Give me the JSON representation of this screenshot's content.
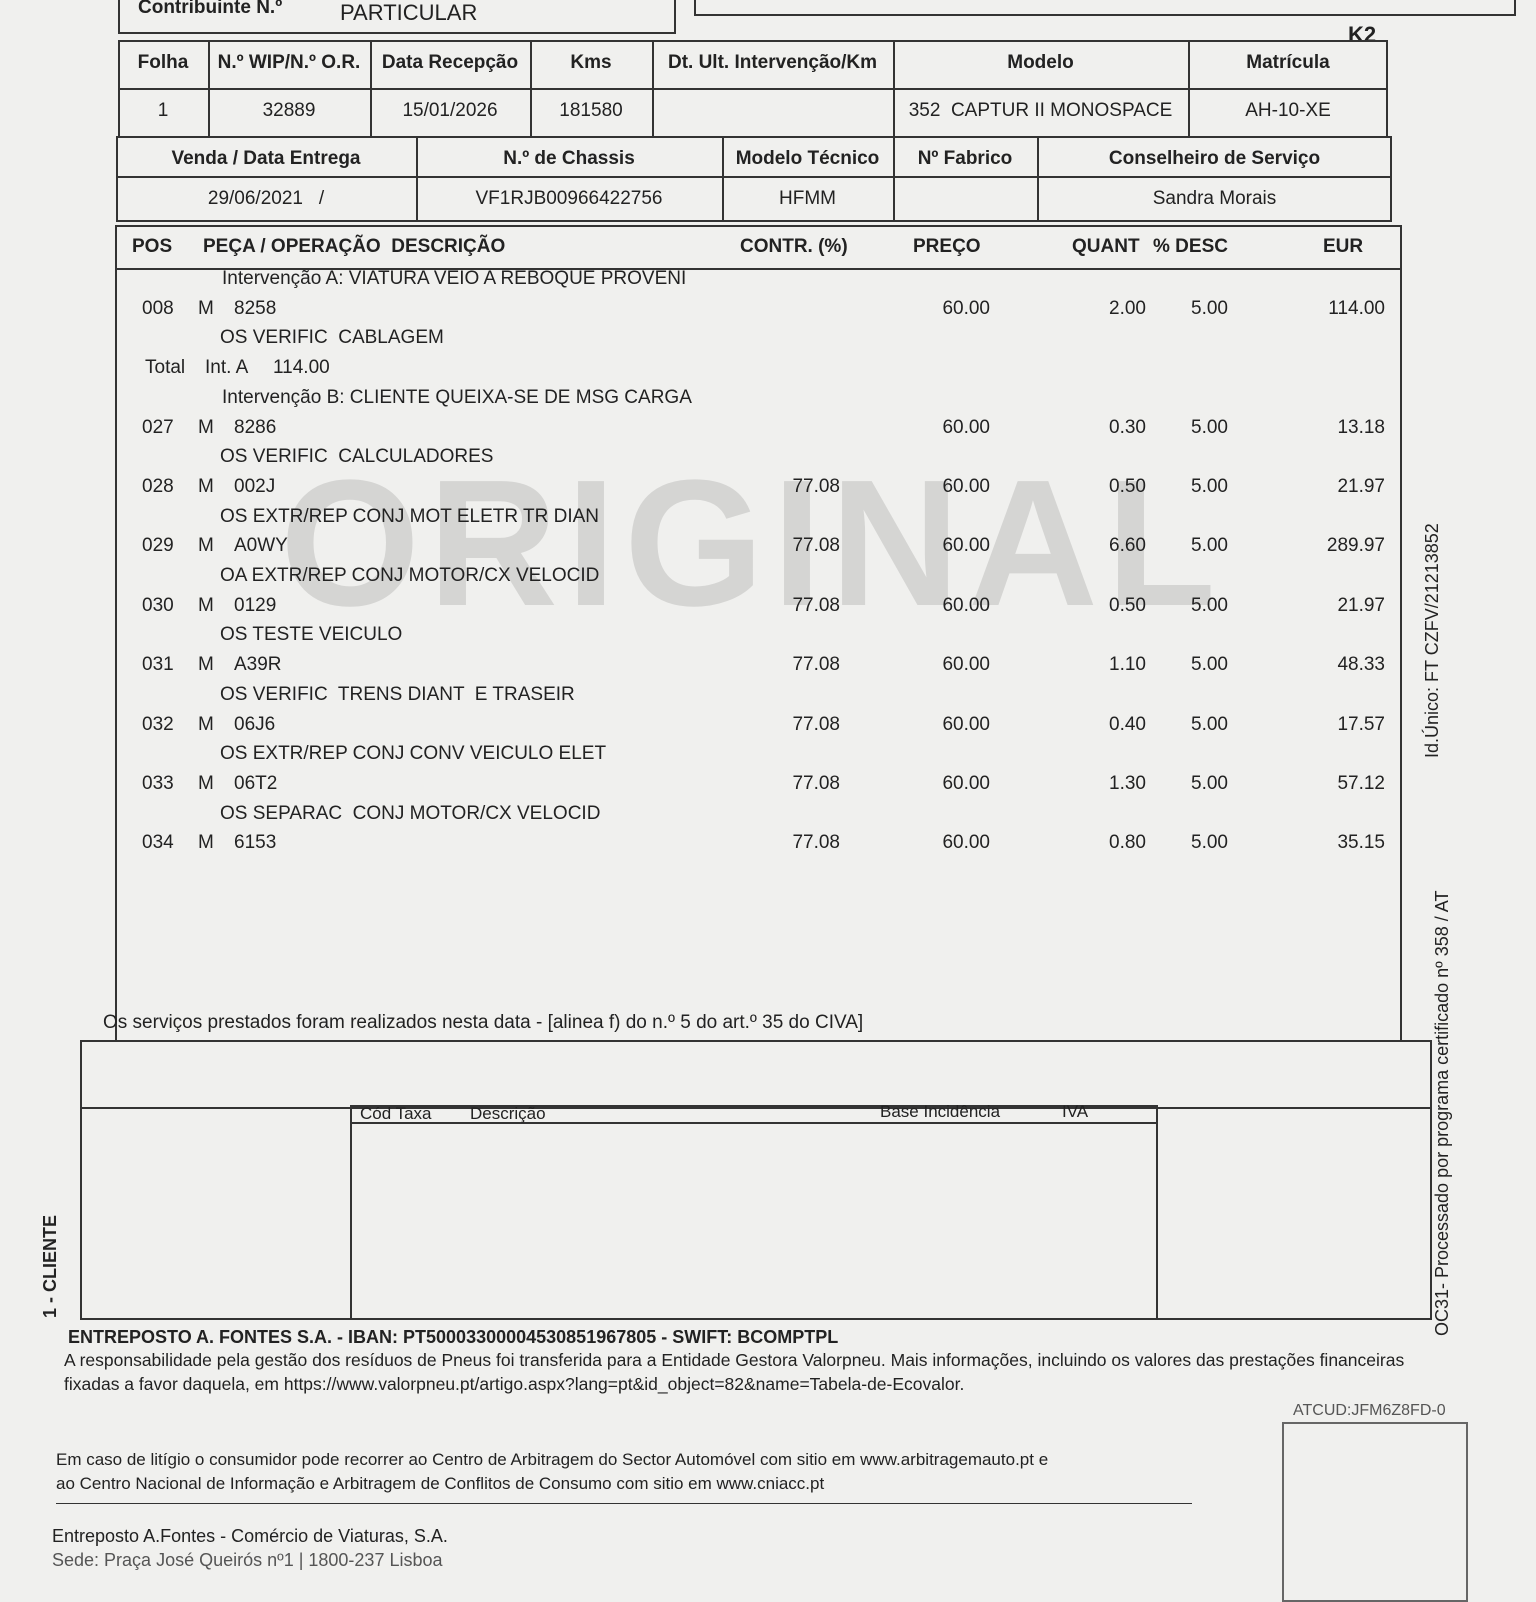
{
  "header": {
    "contribuinte_label": "Contribuinte N.º",
    "contribuinte_value": "PARTICULAR",
    "sheet_code": "K2"
  },
  "vehicle_table": {
    "columns": [
      {
        "label": "Folha",
        "value": "1"
      },
      {
        "label": "N.º WIP/N.º O.R.",
        "value": "32889"
      },
      {
        "label": "Data Recepção",
        "value": "15/01/2026"
      },
      {
        "label": "Kms",
        "value": "181580"
      },
      {
        "label": "Dt. Ult. Intervenção/Km"
      },
      {
        "label": "Modelo",
        "value": "352  CAPTUR II MONOSPACE"
      },
      {
        "label": "Matrícula",
        "value": "AH-10-XE"
      }
    ]
  },
  "delivery_table": {
    "columns": [
      {
        "label": "Venda / Data Entrega",
        "value": "29/06/2021   /"
      },
      {
        "label": "N.º de Chassis",
        "value": "VF1RJB00966422756"
      },
      {
        "label": "Modelo Técnico",
        "value": "HFMM"
      },
      {
        "label": "Nº Fabrico"
      },
      {
        "label": "Conselheiro de Serviço",
        "value": "Sandra Morais"
      }
    ]
  },
  "lines_table": {
    "headers": {
      "pos": "POS",
      "description": "PEÇA / OPERAÇÃO  DESCRIÇÃO",
      "contr": "CONTR. (%)",
      "price": "PREÇO",
      "qty": "QUANT",
      "discount": "% DESC",
      "eur": "EUR"
    },
    "rows": [
      {
        "heading": "Intervenção A: VIATURA VEIO A REBOQUE PROVENI"
      },
      {
        "pos": "008",
        "kind": "M",
        "code": "8258",
        "price": "60.00",
        "qty": "2.00",
        "discount": "5.00",
        "eur": "114.00"
      },
      {
        "text": "OS VERIFIC  CABLAGEM"
      },
      {
        "total": "Total",
        "intervention": "Int. A",
        "amount": "114.00"
      },
      {
        "heading": "Intervenção B: CLIENTE QUEIXA-SE DE MSG CARGA"
      },
      {
        "pos": "027",
        "kind": "M",
        "code": "8286",
        "price": "60.00",
        "qty": "0.30",
        "discount": "5.00",
        "eur": "13.18"
      },
      {
        "text": "OS VERIFIC  CALCULADORES"
      },
      {
        "pos": "028",
        "kind": "M",
        "code": "002J",
        "contr": "77.08",
        "price": "60.00",
        "qty": "0.50",
        "discount": "5.00",
        "eur": "21.97"
      },
      {
        "text": "OS EXTR/REP CONJ MOT ELETR TR DIAN"
      },
      {
        "pos": "029",
        "kind": "M",
        "code": "A0WY",
        "contr": "77.08",
        "price": "60.00",
        "qty": "6.60",
        "discount": "5.00",
        "eur": "289.97"
      },
      {
        "text": "OA EXTR/REP CONJ MOTOR/CX VELOCID"
      },
      {
        "pos": "030",
        "kind": "M",
        "code": "0129",
        "contr": "77.08",
        "price": "60.00",
        "qty": "0.50",
        "discount": "5.00",
        "eur": "21.97"
      },
      {
        "text": "OS TESTE VEICULO"
      },
      {
        "pos": "031",
        "kind": "M",
        "code": "A39R",
        "contr": "77.08",
        "price": "60.00",
        "qty": "1.10",
        "discount": "5.00",
        "eur": "48.33"
      },
      {
        "text": "OS VERIFIC  TRENS DIANT  E TRASEIR"
      },
      {
        "pos": "032",
        "kind": "M",
        "code": "06J6",
        "contr": "77.08",
        "price": "60.00",
        "qty": "0.40",
        "discount": "5.00",
        "eur": "17.57"
      },
      {
        "text": "OS EXTR/REP CONJ CONV VEICULO ELET"
      },
      {
        "pos": "033",
        "kind": "M",
        "code": "06T2",
        "contr": "77.08",
        "price": "60.00",
        "qty": "1.30",
        "discount": "5.00",
        "eur": "57.12"
      },
      {
        "text": "OS SEPARAC  CONJ MOTOR/CX VELOCID"
      },
      {
        "pos": "034",
        "kind": "M",
        "code": "6153",
        "contr": "77.08",
        "price": "60.00",
        "qty": "0.80",
        "discount": "5.00",
        "eur": "35.15"
      }
    ]
  },
  "watermark": "ORIGINAL",
  "services_note": "Os serviços prestados foram realizados nesta data - [alinea f) do n.º 5 do art.º 35 do CIVA]",
  "tax_table": {
    "headers": [
      "Cód Taxa",
      "Descrição",
      "Base Incidência",
      "IVA"
    ]
  },
  "side_labels": {
    "copy": "1 - CLIENTE",
    "unique_id": "Id.Único: FT CZFV/21213852",
    "certification": "OC31- Processado por programa certificado nº 358 / AT"
  },
  "footer": {
    "bank_line": "ENTREPOSTO A. FONTES S.A. - IBAN: PT50003300004530851967805 - SWIFT: BCOMPTPL",
    "valorpneu_line1": "A responsabilidade pela gestão dos resíduos de Pneus foi transferida para a Entidade Gestora Valorpneu. Mais informações, incluindo os valores das prestações financeiras",
    "valorpneu_line2": "fixadas a favor daquela, em https://www.valorpneu.pt/artigo.aspx?lang=pt&id_object=82&name=Tabela-de-Ecovalor.",
    "atcud": "ATCUD:JFM6Z8FD-0",
    "dispute_line1": "Em caso de litígio o consumidor pode recorrer ao Centro de Arbitragem do Sector Automóvel com sitio em www.arbitragemauto.pt e",
    "dispute_line2": "ao Centro Nacional de Informação e Arbitragem de Conflitos de Consumo com sitio em www.cniacc.pt",
    "company": "Entreposto A.Fontes - Comércio de Viaturas, S.A.",
    "address": "Sede: Praça José Queirós nº1 | 1800-237 Lisboa"
  }
}
